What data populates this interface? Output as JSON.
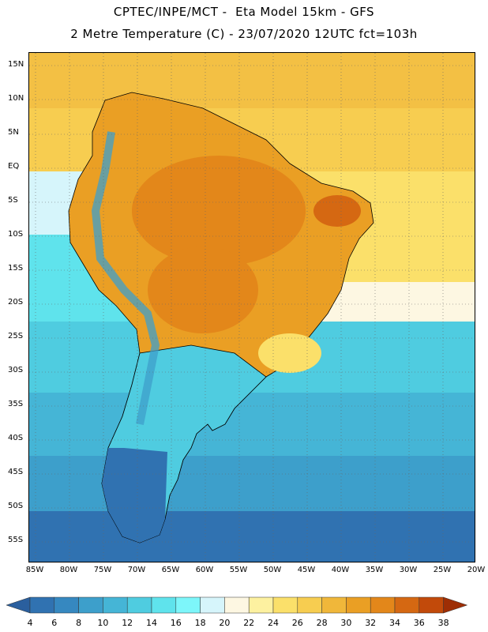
{
  "header": {
    "line1": "CPTEC/INPE/MCT -  Eta Model 15km - GFS",
    "line2": "2 Metre Temperature (C) - 23/07/2020 12UTC fct=103h"
  },
  "map": {
    "lat_labels": [
      "15N",
      "10N",
      "5N",
      "EQ",
      "5S",
      "10S",
      "15S",
      "20S",
      "25S",
      "30S",
      "35S",
      "40S",
      "45S",
      "50S",
      "55S"
    ],
    "lon_labels": [
      "85W",
      "80W",
      "75W",
      "70W",
      "65W",
      "60W",
      "55W",
      "50W",
      "45W",
      "40W",
      "35W",
      "30W",
      "25W",
      "20W"
    ]
  },
  "colorbar": {
    "labels": [
      "4",
      "6",
      "8",
      "10",
      "12",
      "14",
      "16",
      "18",
      "20",
      "22",
      "24",
      "26",
      "28",
      "30",
      "32",
      "34",
      "36",
      "38"
    ],
    "colors": [
      "#2a5f9e",
      "#3072b1",
      "#3688c0",
      "#3d9fcb",
      "#45b5d6",
      "#4fcce0",
      "#5fe3ec",
      "#7df6fa",
      "#d6f5fb",
      "#fdf7e2",
      "#fdf1a0",
      "#fbe06a",
      "#f7cd50",
      "#f0b73a",
      "#ea9f24",
      "#e3871a",
      "#d56812",
      "#c24a0a",
      "#9e2e05"
    ]
  }
}
